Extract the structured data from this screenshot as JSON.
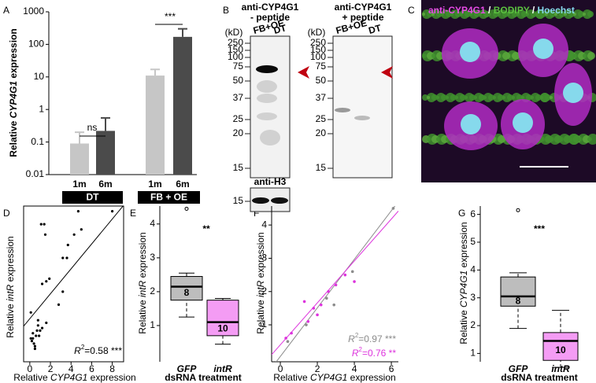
{
  "figure": {
    "panels": [
      "A",
      "B",
      "C",
      "D",
      "E",
      "F",
      "G"
    ],
    "blots": [
      {
        "title": "anti-CYP4G1",
        "subtitle": "- peptide",
        "unit": "(kD)",
        "lanes": [
          "FB+OE",
          "DT"
        ],
        "ladder": [
          250,
          150,
          100,
          75,
          50,
          37,
          25,
          20,
          15
        ],
        "loading": {
          "title": "anti-H3",
          "ladder": [
            15
          ]
        }
      },
      {
        "title": "anti-CYP4G1",
        "subtitle": "+ peptide",
        "unit": "(kD)",
        "lanes": [
          "FB+OE",
          "DT"
        ],
        "ladder": [
          250,
          150,
          100,
          75,
          50,
          37,
          25,
          20,
          15
        ]
      }
    ],
    "micrograph": {
      "labels": [
        "anti-CYP4G1",
        " / ",
        "BODIPY",
        " / ",
        "Hoechst"
      ]
    }
  },
  "chart_data": [
    {
      "type": "bar",
      "ylabel": [
        "Relative ",
        "CYP4G1",
        " expression"
      ],
      "categories": [
        "1m",
        "6m",
        "1m",
        "6m"
      ],
      "groups": [
        "DT",
        "FB + OE"
      ],
      "values": [
        0.09,
        0.22,
        11,
        170
      ],
      "errors": [
        0.11,
        0.33,
        6,
        130
      ],
      "colors": [
        "#c6c6c6",
        "#4b4b4b",
        "#c6c6c6",
        "#4b4b4b"
      ],
      "ylim": [
        0.01,
        1000
      ],
      "yticks": [
        0.01,
        0.1,
        1,
        10,
        100,
        1000
      ],
      "log_y": true,
      "annotations": [
        "ns",
        "***"
      ]
    },
    {
      "type": "scatter",
      "xlabel": [
        "Relative ",
        "CYP4G1",
        " expression"
      ],
      "ylabel": [
        "Relative ",
        "intR",
        " expression"
      ],
      "x": [
        0.1,
        0.2,
        0.3,
        0.3,
        0.4,
        0.5,
        0.5,
        0.6,
        0.7,
        0.8,
        0.8,
        0.9,
        1.0,
        1.2,
        0.1,
        1.1,
        1.4,
        1.2,
        1.5,
        1.6,
        1.9,
        1.6,
        2.8,
        3.2,
        3.2,
        3.7,
        3.6,
        4.3,
        4.7,
        5.0,
        8.0
      ],
      "y": [
        0.95,
        0.4,
        0.45,
        0.55,
        0.35,
        0.3,
        0.25,
        0.5,
        0.6,
        0.7,
        0.8,
        0.5,
        0.6,
        0.65,
        0.45,
        2.65,
        2.65,
        1.5,
        2.45,
        1.55,
        1.6,
        0.75,
        1.1,
        1.35,
        2.0,
        2.25,
        2.0,
        2.45,
        2.9,
        2.55,
        2.9
      ],
      "color": "#000000",
      "xlim": [
        -0.6,
        9.1
      ],
      "xticks": [
        0,
        2,
        4,
        6,
        8
      ],
      "ylim": [
        0,
        3
      ],
      "fit": {
        "intercept": 0.83,
        "slope": 0.24
      },
      "annotation": [
        "R",
        "2",
        "=0.58",
        " ***"
      ]
    },
    {
      "type": "box",
      "ylabel": [
        "Relative ",
        "intR",
        " expression"
      ],
      "xlabel": "dsRNA treatment",
      "categories": [
        "GFP",
        "intR"
      ],
      "colors": [
        "#bdbdbd",
        "#f49cf4"
      ],
      "boxes": [
        {
          "whislo": 1.25,
          "q1": 1.75,
          "med": 2.15,
          "q3": 2.45,
          "whishi": 2.55,
          "fliers": [
            4.45
          ],
          "n": 8
        },
        {
          "whislo": 0.45,
          "q1": 0.7,
          "med": 1.1,
          "q3": 1.75,
          "whishi": 1.8,
          "fliers": [],
          "n": 10
        }
      ],
      "ylim": [
        -0.07,
        4.53
      ],
      "yticks": [
        1,
        2,
        3,
        4
      ],
      "annotation": "**"
    },
    {
      "type": "scatter",
      "xlabel": [
        "Relative ",
        "CYP4G1",
        " expression"
      ],
      "ylabel": [
        "Relative ",
        "intR",
        " expression"
      ],
      "series": [
        {
          "color": "#8c8c8c",
          "x": [
            0.4,
            1.4,
            2.5,
            2.9,
            3.9,
            6.1
          ],
          "y": [
            0.5,
            1.0,
            1.8,
            1.6,
            2.6,
            4.5
          ],
          "fit": {
            "intercept": 0.05,
            "slope": 0.73
          },
          "annotation": [
            "R",
            "2",
            "=0.97",
            " ***"
          ]
        },
        {
          "color": "#dd33dd",
          "x": [
            0.3,
            0.6,
            1.3,
            1.5,
            1.8,
            2.0,
            2.2,
            2.6,
            3.0,
            3.5,
            4.0
          ],
          "y": [
            0.6,
            0.75,
            1.7,
            1.1,
            1.5,
            1.3,
            1.6,
            2.0,
            2.2,
            2.5,
            2.3
          ],
          "fit": {
            "intercept": 0.4,
            "slope": 0.63
          },
          "annotation": [
            "R",
            "2",
            "=0.76",
            " **"
          ]
        }
      ],
      "xlim": [
        -0.47,
        6.38
      ],
      "xticks": [
        0,
        2,
        4,
        6
      ],
      "ylim": [
        -0.11,
        4.57
      ],
      "yticks": [
        1,
        2,
        3,
        4
      ]
    },
    {
      "type": "box",
      "ylabel": [
        "Relative ",
        "CYP4G1",
        " expression"
      ],
      "xlabel": "dsRNA treatment",
      "categories": [
        "GFP",
        "intR"
      ],
      "colors": [
        "#bdbdbd",
        "#f49cf4"
      ],
      "boxes": [
        {
          "whislo": 1.9,
          "q1": 2.7,
          "med": 3.05,
          "q3": 3.75,
          "whishi": 3.9,
          "fliers": [
            6.15
          ],
          "n": 8
        },
        {
          "whislo": 0.5,
          "q1": 0.75,
          "med": 1.45,
          "q3": 1.75,
          "whishi": 2.55,
          "fliers": [],
          "n": 10
        }
      ],
      "ylim": [
        0.7,
        6.3
      ],
      "yticks": [
        1,
        2,
        3,
        4,
        5,
        6
      ],
      "annotation": "***"
    }
  ]
}
